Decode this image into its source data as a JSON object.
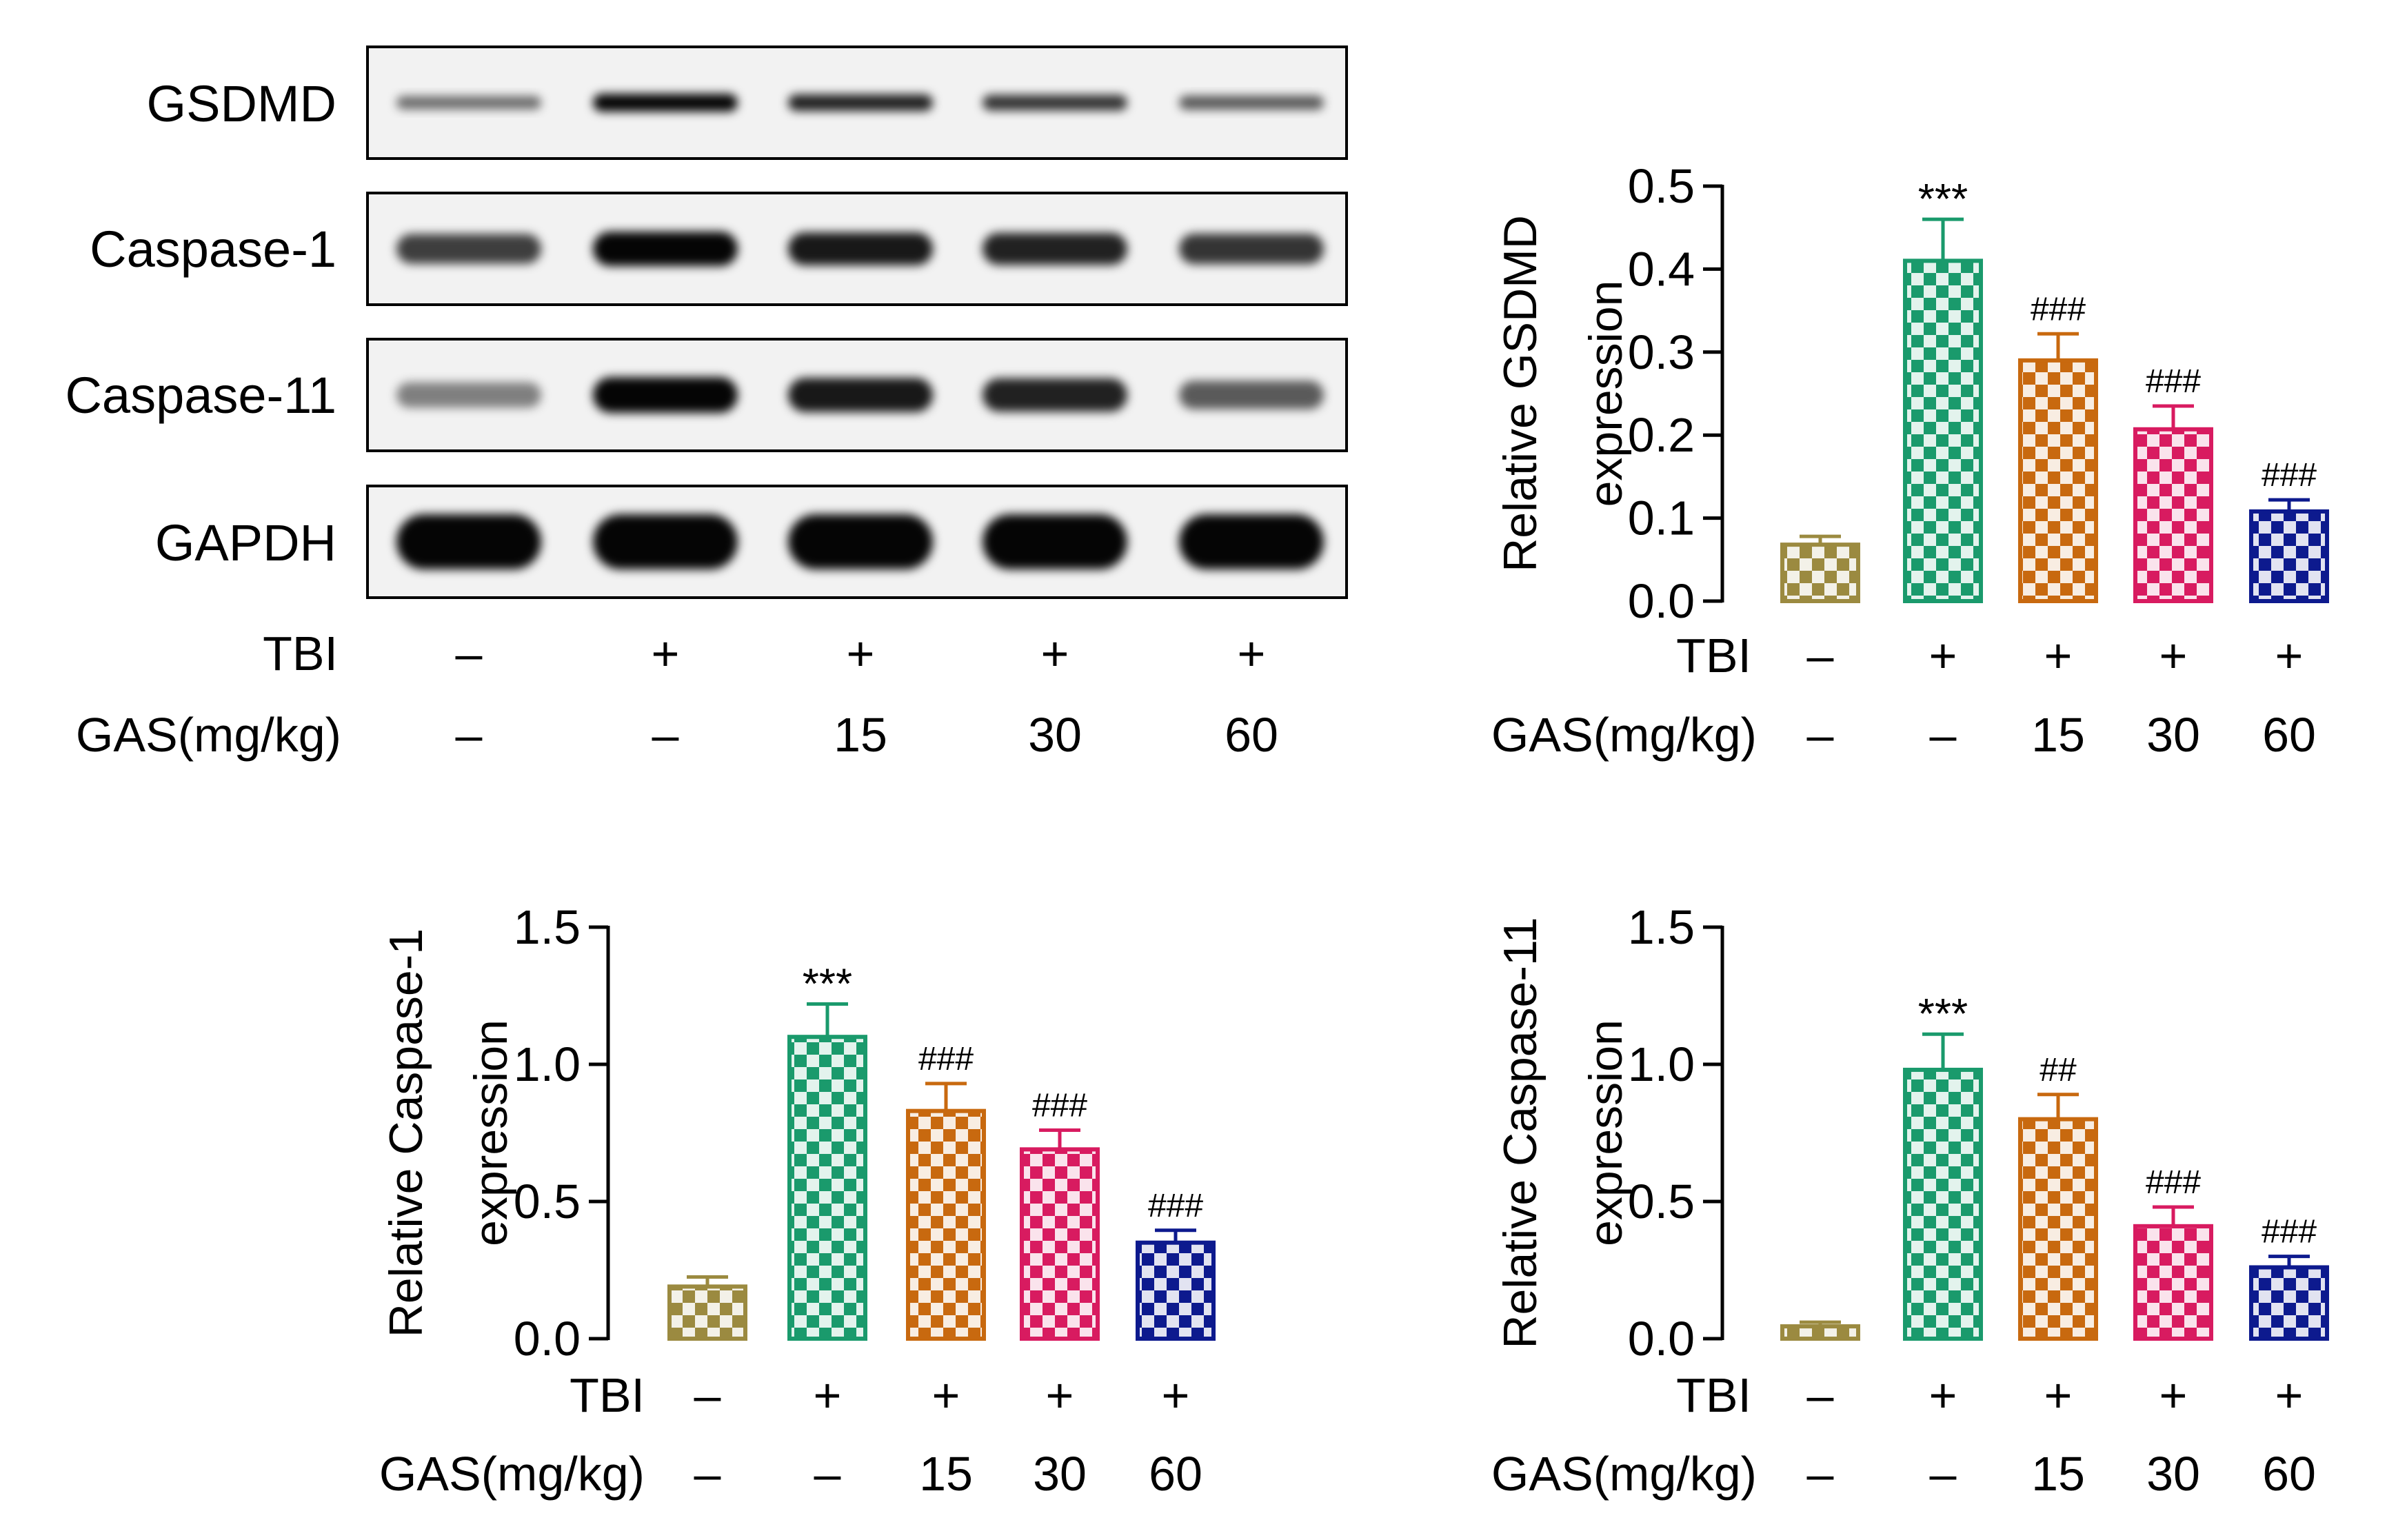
{
  "western_blot": {
    "proteins": [
      "GSDMD",
      "Caspase-1",
      "Caspase-11",
      "GAPDH"
    ],
    "band_intensity": [
      [
        0.45,
        1.0,
        0.85,
        0.75,
        0.55
      ],
      [
        0.7,
        1.0,
        0.9,
        0.85,
        0.75
      ],
      [
        0.35,
        1.0,
        0.9,
        0.85,
        0.55
      ],
      [
        1.0,
        1.0,
        1.0,
        1.0,
        1.0
      ]
    ],
    "row_labels": {
      "tbi": "TBI",
      "gas": "GAS(mg/kg)"
    },
    "tbi_values": [
      "–",
      "+",
      "+",
      "+",
      "+"
    ],
    "gas_values": [
      "–",
      "–",
      "15",
      "30",
      "60"
    ]
  },
  "colors": {
    "bars": [
      "#9b8a40",
      "#1a9a6c",
      "#c8690f",
      "#d81b60",
      "#0d1a8e"
    ]
  },
  "chart_data": [
    {
      "type": "bar",
      "ylabel_lines": [
        "Relative GSDMD",
        "expression"
      ],
      "ylim": [
        0,
        0.5
      ],
      "yticks": [
        "0.0",
        "0.1",
        "0.2",
        "0.3",
        "0.4",
        "0.5"
      ],
      "ytick_values": [
        0,
        0.1,
        0.2,
        0.3,
        0.4,
        0.5
      ],
      "categories_tbi": [
        "–",
        "+",
        "+",
        "+",
        "+"
      ],
      "categories_gas": [
        "–",
        "–",
        "15",
        "30",
        "60"
      ],
      "row_labels": [
        "TBI",
        "GAS(mg/kg)"
      ],
      "values": [
        0.068,
        0.41,
        0.29,
        0.207,
        0.108
      ],
      "errors": [
        0.01,
        0.05,
        0.032,
        0.028,
        0.014
      ],
      "annotations": [
        "",
        "***",
        "###",
        "###",
        "###"
      ]
    },
    {
      "type": "bar",
      "ylabel_lines": [
        "Relative Caspase-1",
        "expression"
      ],
      "ylim": [
        0,
        1.5
      ],
      "yticks": [
        "0.0",
        "0.5",
        "1.0",
        "1.5"
      ],
      "ytick_values": [
        0,
        0.5,
        1.0,
        1.5
      ],
      "categories_tbi": [
        "–",
        "+",
        "+",
        "+",
        "+"
      ],
      "categories_gas": [
        "–",
        "–",
        "15",
        "30",
        "60"
      ],
      "row_labels": [
        "TBI",
        "GAS(mg/kg)"
      ],
      "values": [
        0.19,
        1.1,
        0.83,
        0.69,
        0.35
      ],
      "errors": [
        0.035,
        0.12,
        0.1,
        0.07,
        0.045
      ],
      "annotations": [
        "",
        "***",
        "###",
        "###",
        "###"
      ]
    },
    {
      "type": "bar",
      "ylabel_lines": [
        "Relative Caspase-11",
        "expression"
      ],
      "ylim": [
        0,
        1.5
      ],
      "yticks": [
        "0.0",
        "0.5",
        "1.0",
        "1.5"
      ],
      "ytick_values": [
        0,
        0.5,
        1.0,
        1.5
      ],
      "categories_tbi": [
        "–",
        "+",
        "+",
        "+",
        "+"
      ],
      "categories_gas": [
        "–",
        "–",
        "15",
        "30",
        "60"
      ],
      "row_labels": [
        "TBI",
        "GAS(mg/kg)"
      ],
      "values": [
        0.045,
        0.98,
        0.8,
        0.41,
        0.26
      ],
      "errors": [
        0.015,
        0.13,
        0.09,
        0.07,
        0.04
      ],
      "annotations": [
        "",
        "***",
        "##",
        "###",
        "###"
      ]
    }
  ]
}
